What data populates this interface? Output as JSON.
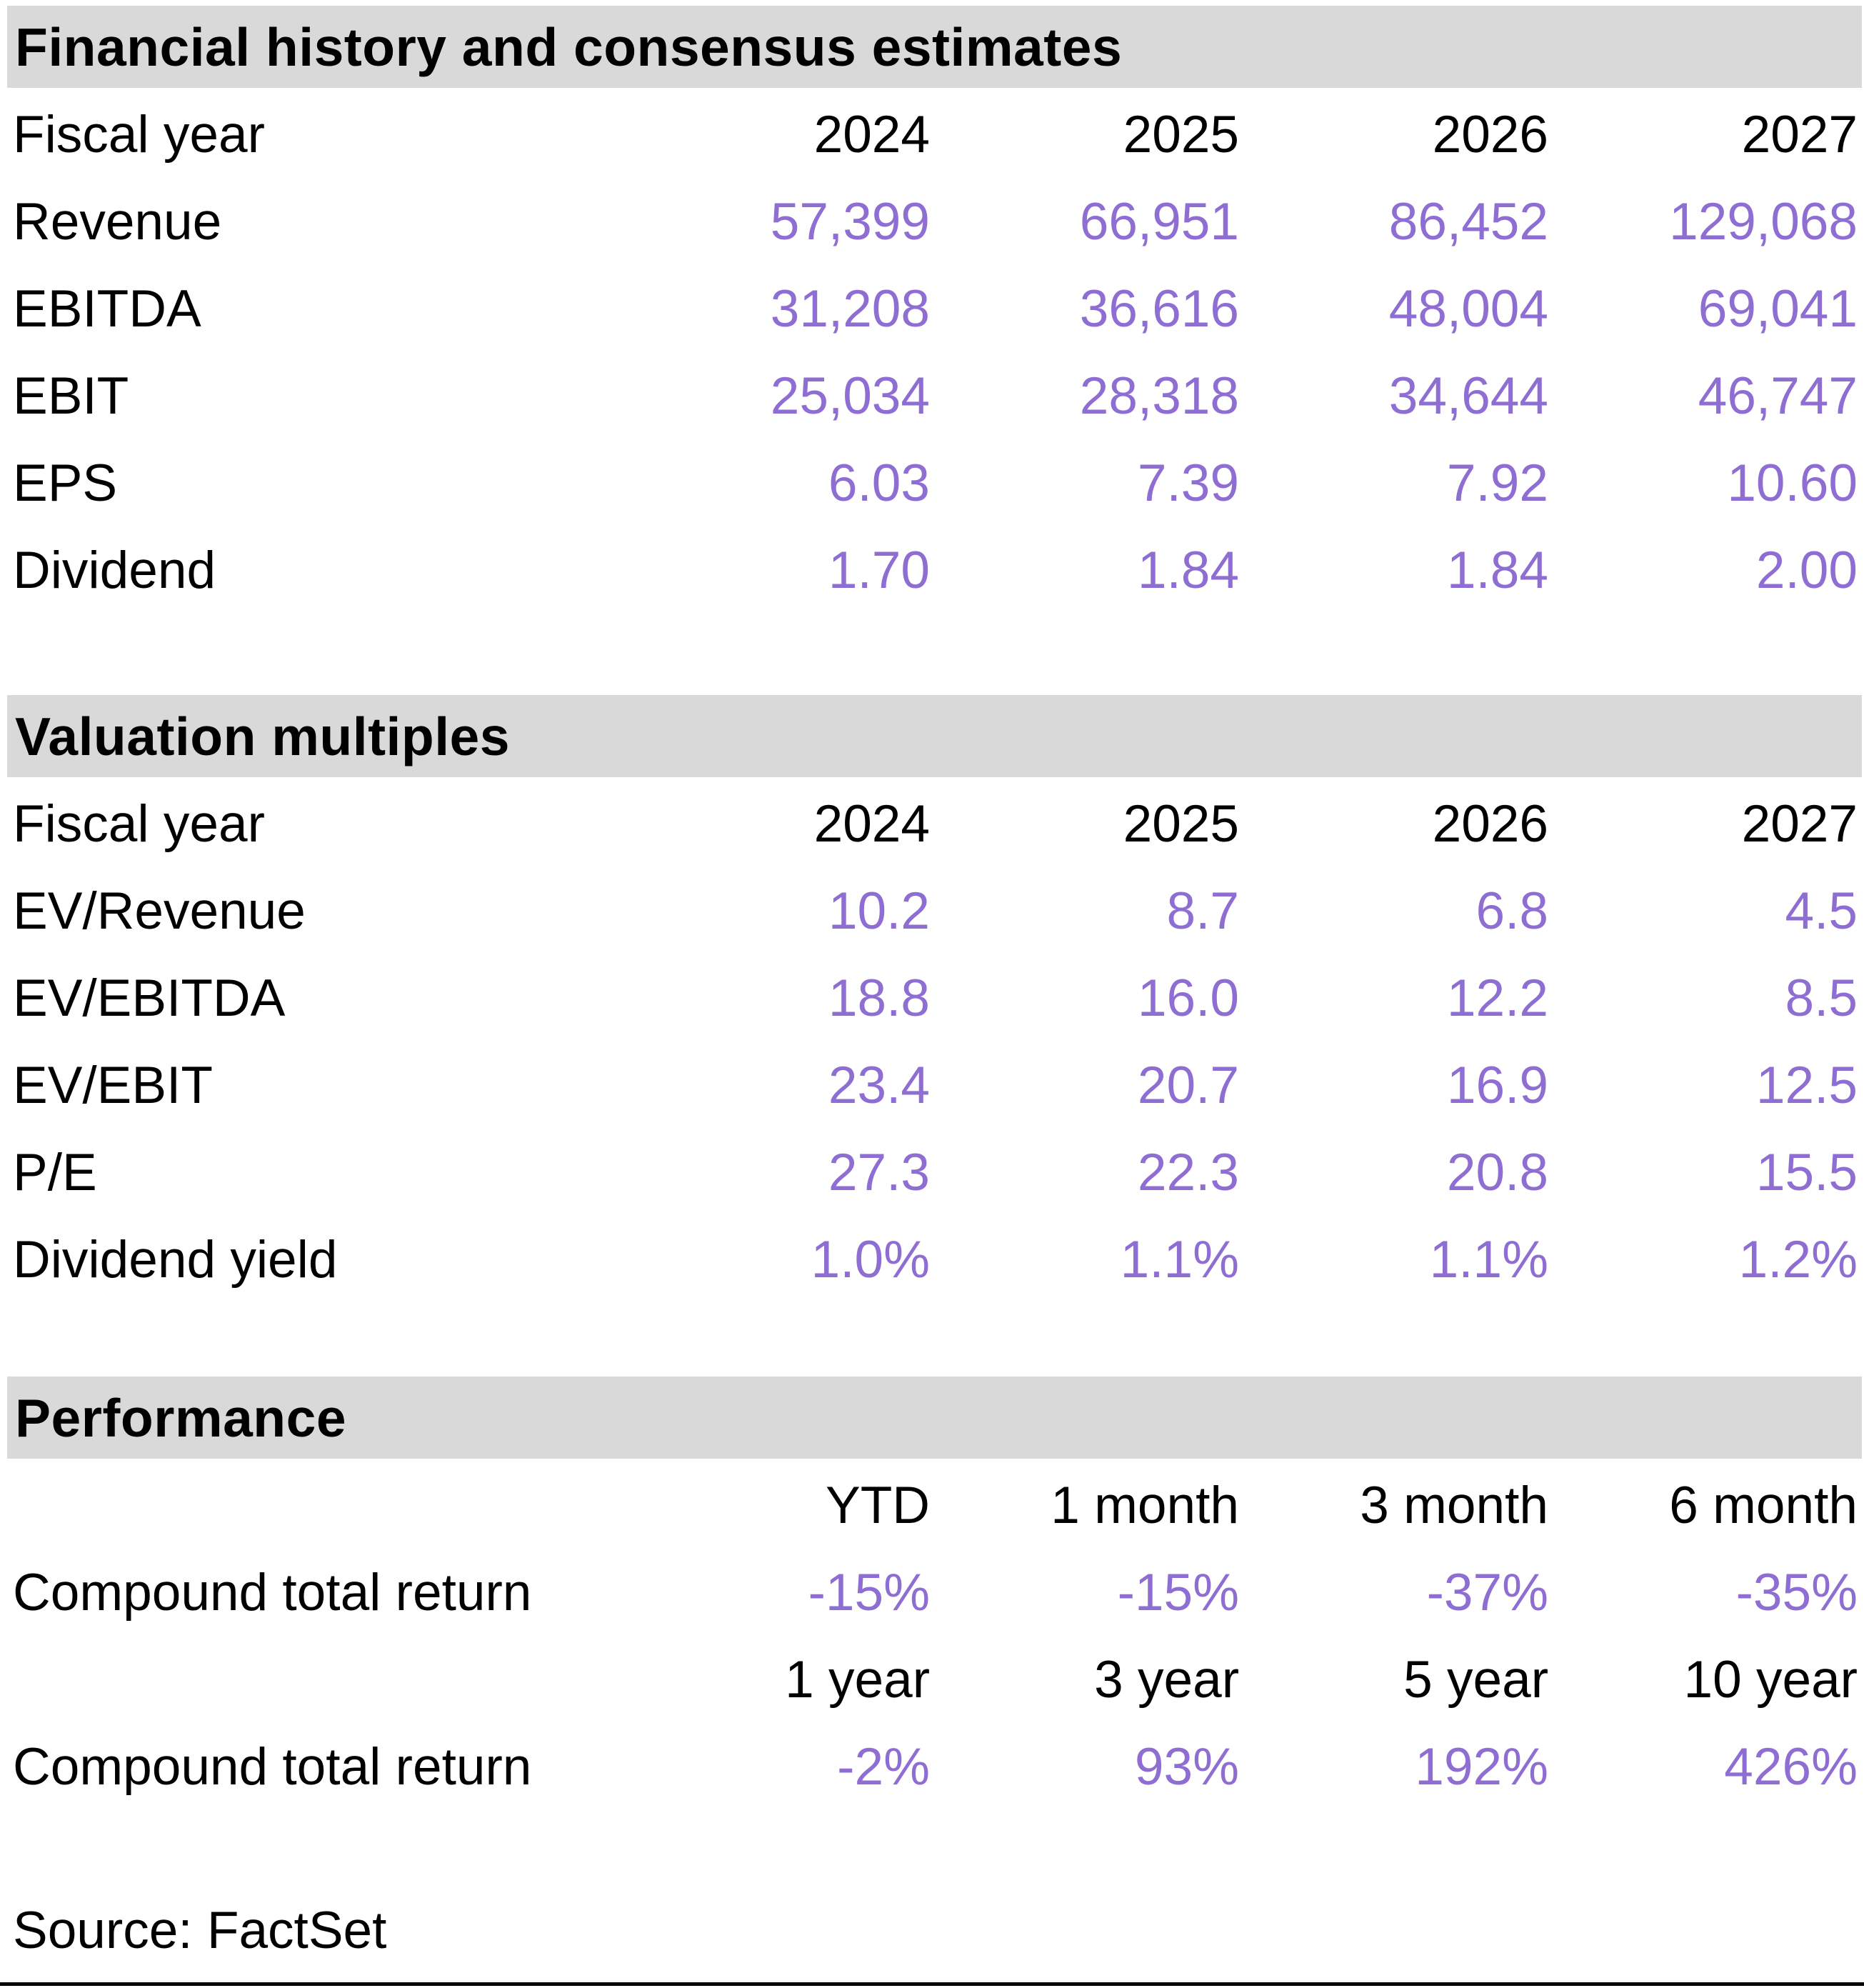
{
  "colors": {
    "section_header_bg": "#D9D9D9",
    "value_text": "#8E6ED2",
    "label_text": "#000000"
  },
  "sections": [
    {
      "title": "Financial history and consensus estimates",
      "columns_label": "Fiscal year",
      "columns": [
        "2024",
        "2025",
        "2026",
        "2027"
      ],
      "rows": [
        {
          "label": "Revenue",
          "values": [
            "57,399",
            "66,951",
            "86,452",
            "129,068"
          ]
        },
        {
          "label": "EBITDA",
          "values": [
            "31,208",
            "36,616",
            "48,004",
            "69,041"
          ]
        },
        {
          "label": "EBIT",
          "values": [
            "25,034",
            "28,318",
            "34,644",
            "46,747"
          ]
        },
        {
          "label": "EPS",
          "values": [
            "6.03",
            "7.39",
            "7.92",
            "10.60"
          ]
        },
        {
          "label": "Dividend",
          "values": [
            "1.70",
            "1.84",
            "1.84",
            "2.00"
          ]
        }
      ]
    },
    {
      "title": "Valuation multiples",
      "columns_label": "Fiscal year",
      "columns": [
        "2024",
        "2025",
        "2026",
        "2027"
      ],
      "rows": [
        {
          "label": "EV/Revenue",
          "values": [
            "10.2",
            "8.7",
            "6.8",
            "4.5"
          ]
        },
        {
          "label": "EV/EBITDA",
          "values": [
            "18.8",
            "16.0",
            "12.2",
            "8.5"
          ]
        },
        {
          "label": "EV/EBIT",
          "values": [
            "23.4",
            "20.7",
            "16.9",
            "12.5"
          ]
        },
        {
          "label": "P/E",
          "values": [
            "27.3",
            "22.3",
            "20.8",
            "15.5"
          ]
        },
        {
          "label": "Dividend yield",
          "values": [
            "1.0%",
            "1.1%",
            "1.1%",
            "1.2%"
          ]
        }
      ]
    },
    {
      "title": "Performance",
      "blocks": [
        {
          "columns": [
            "YTD",
            "1 month",
            "3 month",
            "6 month"
          ],
          "row": {
            "label": "Compound total return",
            "values": [
              "-15%",
              "-15%",
              "-37%",
              "-35%"
            ]
          }
        },
        {
          "columns": [
            "1 year",
            "3 year",
            "5 year",
            "10 year"
          ],
          "row": {
            "label": "Compound total return",
            "values": [
              "-2%",
              "93%",
              "192%",
              "426%"
            ]
          }
        }
      ]
    }
  ],
  "source": "Source: FactSet"
}
